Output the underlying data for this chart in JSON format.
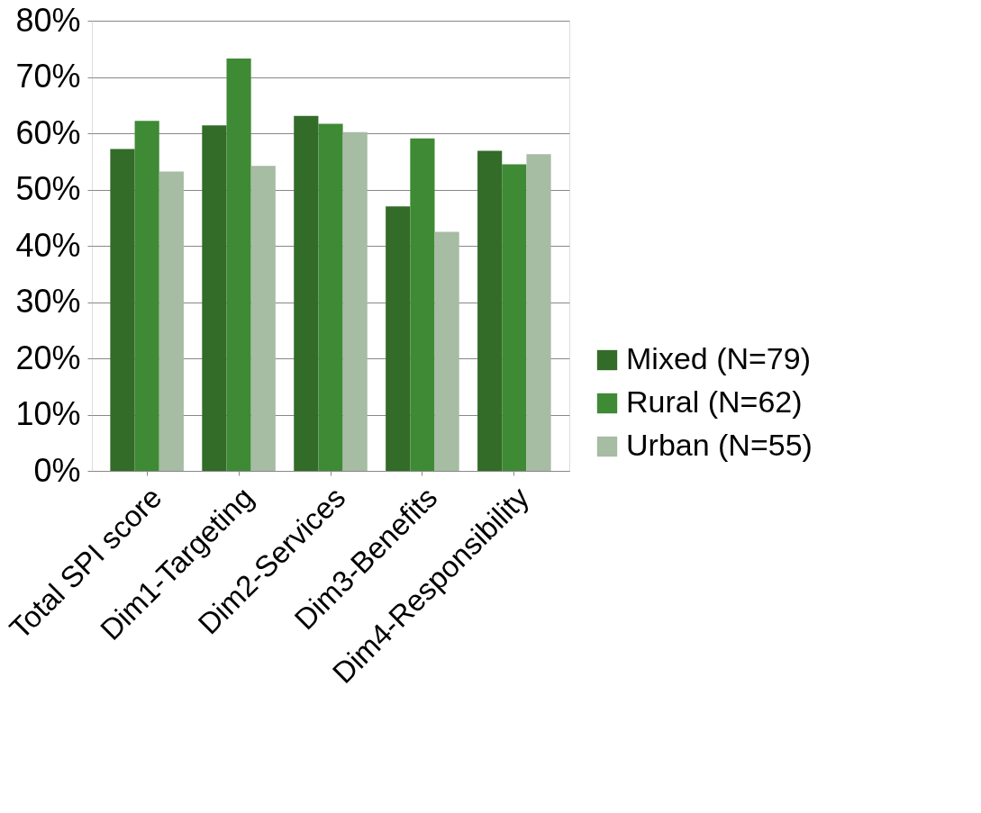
{
  "chart_data": {
    "type": "bar",
    "categories": [
      "Total SPI score",
      "Dim1-Targeting",
      "Dim2-Services",
      "Dim3-Benefits",
      "Dim4-Responsibility"
    ],
    "series": [
      {
        "name": "Mixed (N=79)",
        "color": "#336b28",
        "values": [
          57.2,
          61.4,
          63.1,
          47.0,
          56.9
        ]
      },
      {
        "name": "Rural (N=62)",
        "color": "#3f8a35",
        "values": [
          62.2,
          73.3,
          61.7,
          59.1,
          54.5
        ]
      },
      {
        "name": "Urban (N=55)",
        "color": "#a6bca3",
        "values": [
          53.2,
          54.2,
          60.2,
          42.5,
          56.3
        ]
      }
    ],
    "ylim": [
      0,
      80
    ],
    "yticks": [
      {
        "value": 0,
        "label": "0%"
      },
      {
        "value": 10,
        "label": "10%"
      },
      {
        "value": 20,
        "label": "20%"
      },
      {
        "value": 30,
        "label": "30%"
      },
      {
        "value": 40,
        "label": "40%"
      },
      {
        "value": 50,
        "label": "50%"
      },
      {
        "value": 60,
        "label": "60%"
      },
      {
        "value": 70,
        "label": "70%"
      },
      {
        "value": 80,
        "label": "80%"
      }
    ],
    "grid": "y",
    "legend": "right"
  }
}
